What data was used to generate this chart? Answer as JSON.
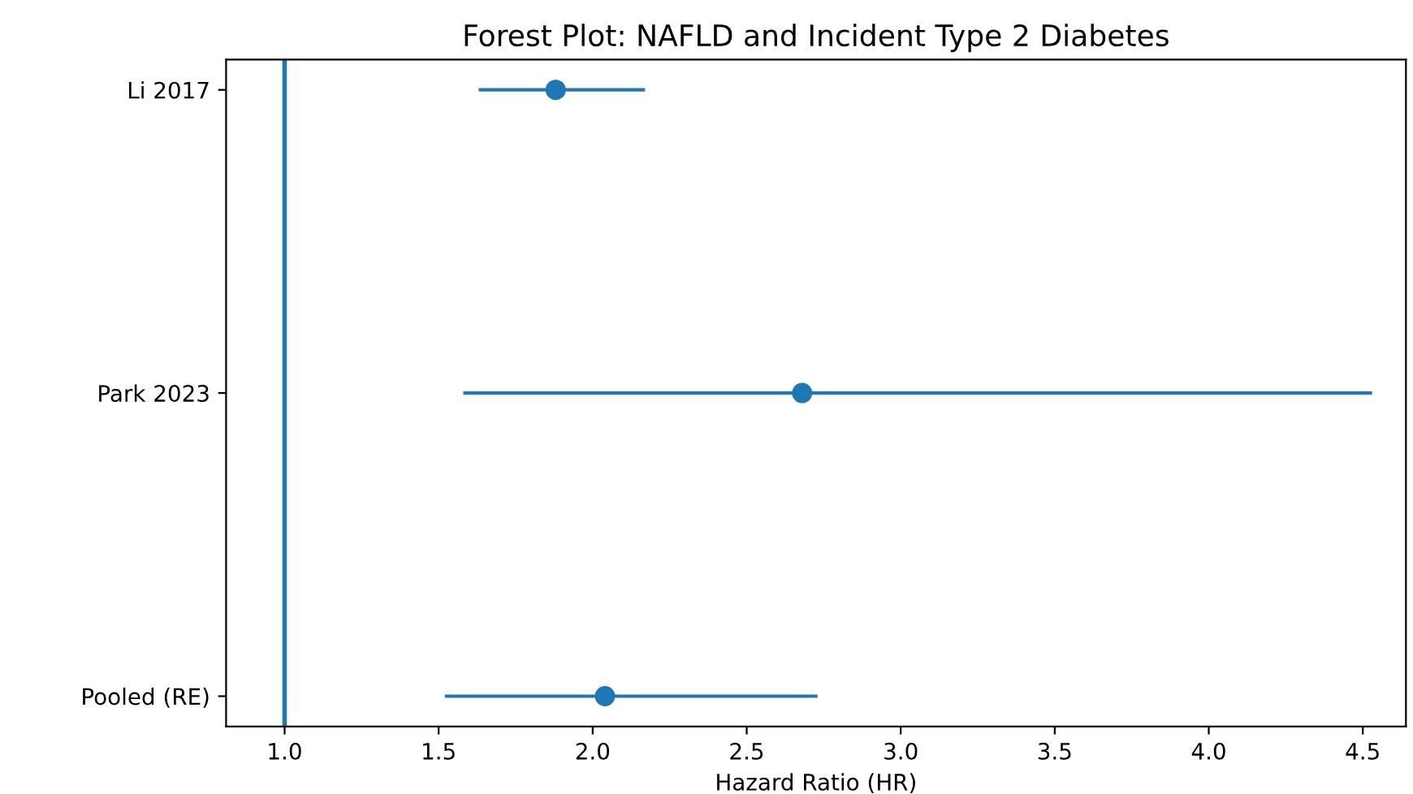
{
  "chart_data": {
    "type": "scatter",
    "orientation": "horizontal",
    "title": "Forest Plot: NAFLD and Incident Type 2 Diabetes",
    "xlabel": "Hazard Ratio (HR)",
    "categories": [
      "Li 2017",
      "Park 2023",
      "Pooled (RE)"
    ],
    "values": [
      1.88,
      2.68,
      2.04
    ],
    "errors": [
      [
        1.63,
        2.17
      ],
      [
        1.58,
        4.53
      ],
      [
        1.52,
        2.73
      ]
    ],
    "color": "#1f77b4",
    "marker": "circle",
    "xlim": [
      0.81,
      4.64
    ],
    "xticks": [
      {
        "value": 1,
        "label": "1.0"
      },
      1.5,
      {
        "value": 2,
        "label": "2.0"
      },
      2.5,
      {
        "value": 3,
        "label": "3.0"
      },
      3.5,
      {
        "value": 4,
        "label": "4.0"
      },
      4.5
    ],
    "ref_lines": [
      {
        "axis": "x",
        "value": 1.0,
        "color": "#1f77b4",
        "line_style": "solid"
      }
    ],
    "grid": false
  }
}
